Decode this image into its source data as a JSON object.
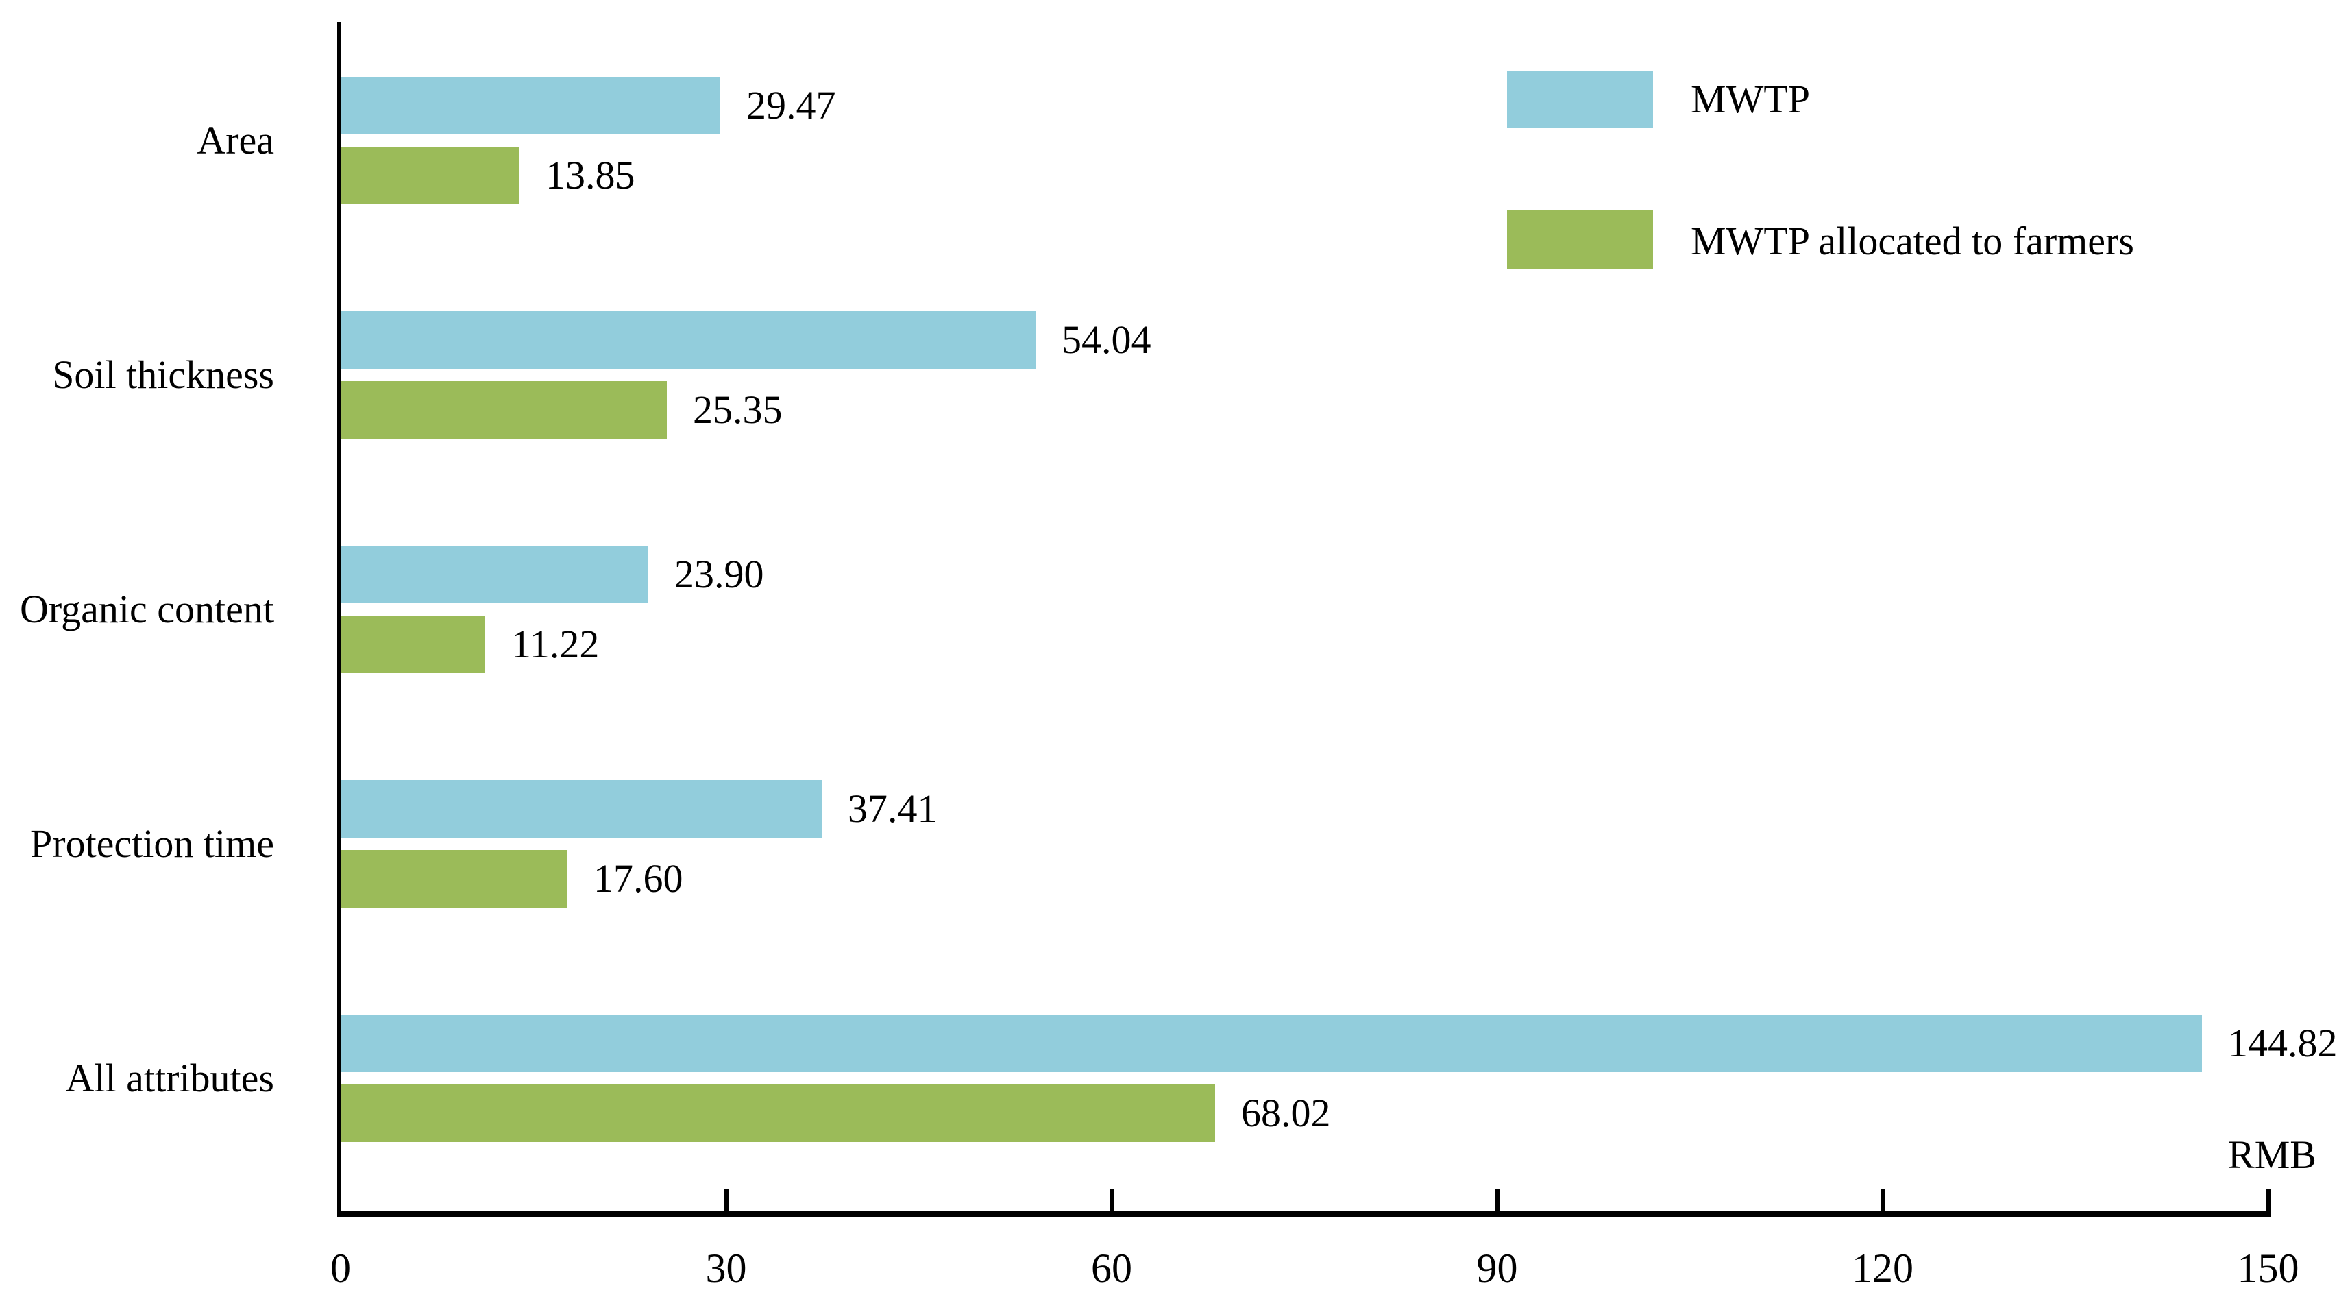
{
  "chart_data": {
    "type": "bar",
    "orientation": "horizontal",
    "title": "",
    "xlabel": "RMB",
    "ylabel": "",
    "categories": [
      "Area",
      "Soil thickness",
      "Organic content",
      "Protection time",
      "All attributes"
    ],
    "series": [
      {
        "name": "MWTP",
        "color": "#92cddc",
        "values": [
          29.47,
          54.04,
          23.9,
          37.41,
          144.82
        ]
      },
      {
        "name": "MWTP allocated to farmers",
        "color": "#9bbb59",
        "values": [
          13.85,
          25.35,
          11.22,
          17.6,
          68.02
        ]
      }
    ],
    "x_ticks": [
      0,
      30,
      60,
      90,
      120,
      150
    ],
    "xlim": [
      0,
      150
    ],
    "grid": false,
    "legend_position": "top-right",
    "value_label_decimals": 2
  },
  "colors": {
    "axis": "#000000",
    "text": "#000000",
    "background": "#ffffff"
  }
}
